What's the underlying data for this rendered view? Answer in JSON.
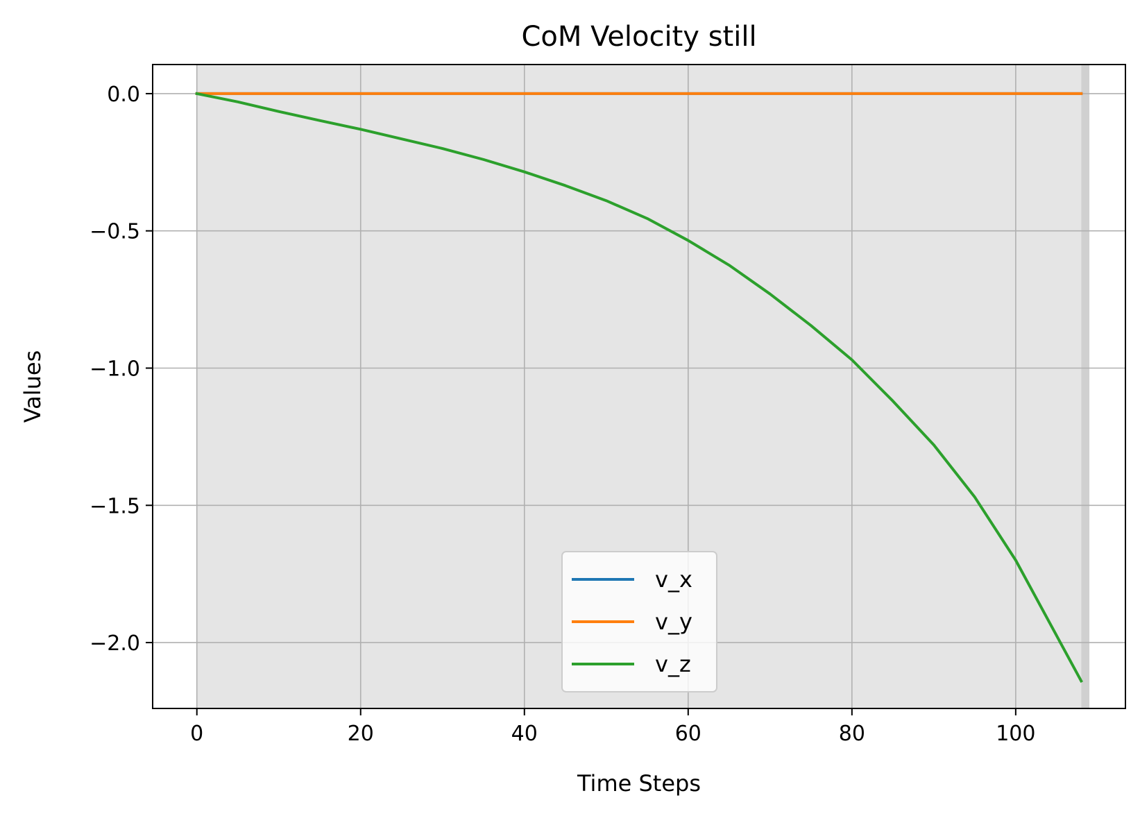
{
  "chart_data": {
    "type": "line",
    "title": "CoM Velocity still",
    "xlabel": "Time Steps",
    "ylabel": "Values",
    "xlim": [
      -5.4,
      113.4
    ],
    "ylim": [
      -2.24,
      0.106
    ],
    "xticks": [
      0,
      20,
      40,
      60,
      80,
      100
    ],
    "yticks": [
      0.0,
      -0.5,
      -1.0,
      -1.5,
      -2.0
    ],
    "xtick_labels": [
      "0",
      "20",
      "40",
      "60",
      "80",
      "100"
    ],
    "ytick_labels": [
      "0.0",
      "−0.5",
      "−1.0",
      "−1.5",
      "−2.0"
    ],
    "grid": true,
    "legend_position": "lower-center",
    "shaded_regions": [
      {
        "x0": 0,
        "x1": 108,
        "color": "#e5e5e5"
      },
      {
        "x0": 108,
        "x1": 109,
        "color": "#d0d0d0"
      }
    ],
    "series": [
      {
        "name": "v_x",
        "color": "#1f77b4",
        "x": [
          0,
          10,
          20,
          30,
          40,
          50,
          60,
          70,
          80,
          90,
          100,
          108
        ],
        "y": [
          0,
          0,
          0,
          0,
          0,
          0,
          0,
          0,
          0,
          0,
          0,
          0
        ]
      },
      {
        "name": "v_y",
        "color": "#ff7f0e",
        "x": [
          0,
          10,
          20,
          30,
          40,
          50,
          60,
          70,
          80,
          90,
          100,
          108
        ],
        "y": [
          0,
          0,
          0,
          0,
          0,
          0,
          0,
          0,
          0,
          0,
          0,
          0
        ]
      },
      {
        "name": "v_z",
        "color": "#2ca02c",
        "x": [
          0,
          5,
          10,
          15,
          20,
          25,
          30,
          35,
          40,
          45,
          50,
          55,
          60,
          65,
          70,
          75,
          80,
          85,
          90,
          95,
          100,
          104,
          108
        ],
        "y": [
          0,
          -0.03,
          -0.065,
          -0.098,
          -0.13,
          -0.165,
          -0.2,
          -0.24,
          -0.285,
          -0.335,
          -0.39,
          -0.455,
          -0.535,
          -0.625,
          -0.73,
          -0.845,
          -0.97,
          -1.12,
          -1.28,
          -1.47,
          -1.7,
          -1.92,
          -2.14
        ]
      }
    ]
  }
}
